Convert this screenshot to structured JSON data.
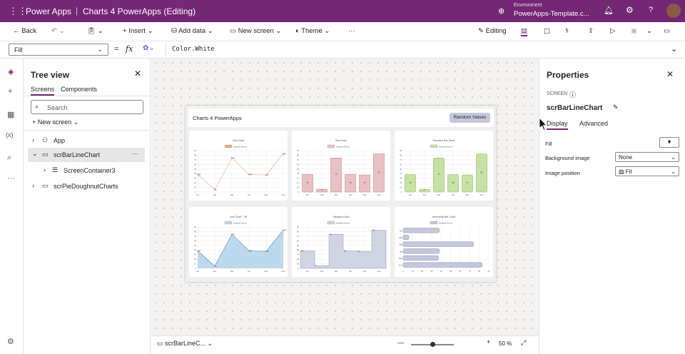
{
  "app": {
    "name": "Power Apps",
    "title": "Charts 4 PowerApps (Editing)",
    "environment_label": "Environment",
    "environment": "PowerApps-Template.c..."
  },
  "toolbar": {
    "back": "Back",
    "insert": "Insert",
    "add_data": "Add data",
    "new_screen": "New screen",
    "theme": "Theme",
    "more": "···",
    "editing": "Editing"
  },
  "formula": {
    "property": "Fill",
    "fx": "fx",
    "value": "Color.White"
  },
  "tree": {
    "title": "Tree view",
    "tabs": [
      "Screens",
      "Components"
    ],
    "search_placeholder": "Search",
    "new_screen": "New screen",
    "items": [
      {
        "label": "App"
      },
      {
        "label": "scrBarLineChart",
        "more": "···"
      },
      {
        "label": "ScreenContainer3"
      },
      {
        "label": "scrPieDoughnutCharts"
      }
    ]
  },
  "app_canvas": {
    "header": "Charts 4 PowerApps",
    "button": "Random Values"
  },
  "chart_data": [
    {
      "type": "line",
      "title": "Line Chart",
      "legend": "Dataset Demo",
      "categories": [
        "Jan",
        "Feb",
        "Mar",
        "Apr",
        "May",
        "June"
      ],
      "values": [
        38,
        5,
        74,
        38,
        37,
        83
      ],
      "ylim": [
        0,
        90
      ],
      "color": "#f4a582"
    },
    {
      "type": "bar",
      "title": "Bar Chart",
      "legend": "Dataset Demo",
      "categories": [
        "Jan",
        "Feb",
        "Mar",
        "Apr",
        "May",
        "June"
      ],
      "values": [
        38,
        6,
        74,
        38,
        37,
        83
      ],
      "ylim": [
        0,
        90
      ],
      "color": "#e8c1c4"
    },
    {
      "type": "bar",
      "title": "Rounded Bar Chart",
      "legend": "Dataset Demo",
      "categories": [
        "Jan",
        "Feb",
        "Mar",
        "Apr",
        "May",
        "June"
      ],
      "values": [
        38,
        6,
        74,
        38,
        37,
        83
      ],
      "ylim": [
        0,
        90
      ],
      "color": "#c6e0a6"
    },
    {
      "type": "area",
      "title": "Line Chart - Fill",
      "legend": "Dataset Demo",
      "categories": [
        "Jan",
        "Feb",
        "Mar",
        "Apr",
        "May",
        "June"
      ],
      "values": [
        38,
        5,
        74,
        38,
        37,
        83
      ],
      "ylim": [
        0,
        90
      ],
      "color": "#bcd9ee"
    },
    {
      "type": "step",
      "title": "Stepped Chart",
      "legend": "Dataset Demo",
      "categories": [
        "Jan",
        "Feb",
        "Mar",
        "Apr",
        "May",
        "June"
      ],
      "values": [
        38,
        6,
        74,
        38,
        37,
        83
      ],
      "ylim": [
        0,
        90
      ],
      "color": "#cdd5e3"
    },
    {
      "type": "hbar",
      "title": "Horizontal Bar Chart",
      "legend": "Dataset Demo",
      "categories": [
        "Jan",
        "Feb",
        "Mar",
        "Apr",
        "May",
        "June"
      ],
      "values": [
        38,
        6,
        74,
        38,
        37,
        83
      ],
      "xlim": [
        0,
        90
      ],
      "color": "#c3c8dc"
    }
  ],
  "props": {
    "title": "Properties",
    "screen_label": "SCREEN",
    "screen_name": "scrBarLineChart",
    "tabs": [
      "Display",
      "Advanced"
    ],
    "fill": "Fill",
    "bg_image": "Background image",
    "bg_image_value": "None",
    "image_position": "Image position",
    "image_position_value": "Fit"
  },
  "bottom": {
    "screen": "scrBarLineC...",
    "zoom": "50 %",
    "zoom_level": 50
  },
  "colors": {
    "brand": "#742774"
  }
}
